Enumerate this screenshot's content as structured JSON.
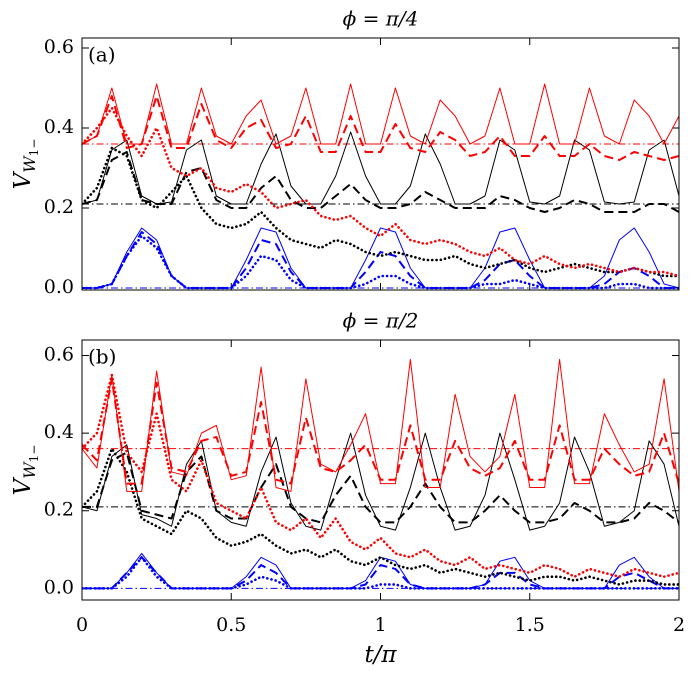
{
  "chart_data": [
    {
      "type": "line",
      "title": "ϕ = π/4",
      "panel_label": "(a)",
      "ylabel": [
        "V",
        "W",
        "1−"
      ],
      "xlim": [
        0,
        2
      ],
      "xticks": [
        0,
        0.5,
        1,
        1.5,
        2
      ],
      "show_xtick_labels": false,
      "ylim": [
        -0.005,
        0.625
      ],
      "yticks": [
        {
          "value": 0,
          "label": "0.0"
        },
        0.2,
        0.4,
        0.6
      ],
      "x": [
        0,
        0.05,
        0.1,
        0.15,
        0.2,
        0.25,
        0.3,
        0.35,
        0.4,
        0.45,
        0.5,
        0.55,
        0.6,
        0.65,
        0.7,
        0.75,
        0.8,
        0.85,
        0.9,
        0.95,
        1,
        1.05,
        1.1,
        1.15,
        1.2,
        1.25,
        1.3,
        1.35,
        1.4,
        1.45,
        1.5,
        1.55,
        1.6,
        1.65,
        1.7,
        1.75,
        1.8,
        1.85,
        1.9,
        1.95,
        2
      ],
      "reference_lines": [
        {
          "value": 0.36,
          "color": "#ff0000"
        },
        {
          "value": 0.21,
          "color": "#000000"
        },
        {
          "value": 0,
          "color": "#0000ff"
        }
      ],
      "series": [
        {
          "color": "#0000ff",
          "style": "solid",
          "values": [
            0,
            0,
            0.01,
            0.09,
            0.15,
            0.12,
            0.03,
            0,
            0,
            0,
            0,
            0.07,
            0.15,
            0.14,
            0.05,
            0,
            0,
            0,
            0,
            0.07,
            0.15,
            0.14,
            0.05,
            0,
            0,
            0,
            0,
            0.05,
            0.14,
            0.15,
            0.07,
            0,
            0,
            0,
            0,
            0.03,
            0.12,
            0.15,
            0.09,
            0.01,
            0
          ]
        },
        {
          "color": "#0000ff",
          "style": "dashed",
          "values": [
            0,
            0,
            0.01,
            0.08,
            0.14,
            0.11,
            0.03,
            0,
            0,
            0,
            0,
            0.05,
            0.12,
            0.11,
            0.04,
            0,
            0,
            0,
            0,
            0.04,
            0.09,
            0.08,
            0.03,
            0,
            0,
            0,
            0,
            0.02,
            0.06,
            0.07,
            0.03,
            0,
            0,
            0,
            0,
            0.01,
            0.04,
            0.05,
            0.03,
            0,
            0
          ]
        },
        {
          "color": "#0000ff",
          "style": "dotted",
          "values": [
            0,
            0,
            0.01,
            0.08,
            0.13,
            0.1,
            0.03,
            0,
            0,
            0,
            0,
            0.03,
            0.08,
            0.07,
            0.02,
            0,
            0,
            0,
            0,
            0.01,
            0.03,
            0.03,
            0.01,
            0,
            0,
            0,
            0,
            0.01,
            0.01,
            0.02,
            0.01,
            0,
            0,
            0,
            0,
            0,
            0.01,
            0.01,
            0,
            0,
            0
          ]
        },
        {
          "color": "#000000",
          "style": "solid",
          "values": [
            0.21,
            0.22,
            0.345,
            0.37,
            0.23,
            0.21,
            0.215,
            0.345,
            0.37,
            0.23,
            0.21,
            0.21,
            0.31,
            0.385,
            0.255,
            0.21,
            0.21,
            0.28,
            0.39,
            0.28,
            0.21,
            0.21,
            0.255,
            0.385,
            0.31,
            0.21,
            0.21,
            0.23,
            0.37,
            0.345,
            0.215,
            0.21,
            0.23,
            0.37,
            0.345,
            0.215,
            0.21,
            0.215,
            0.345,
            0.37,
            0.23
          ]
        },
        {
          "color": "#000000",
          "style": "dashed",
          "values": [
            0.21,
            0.22,
            0.32,
            0.34,
            0.22,
            0.21,
            0.21,
            0.29,
            0.3,
            0.22,
            0.2,
            0.2,
            0.25,
            0.28,
            0.22,
            0.2,
            0.2,
            0.23,
            0.26,
            0.22,
            0.2,
            0.2,
            0.21,
            0.24,
            0.22,
            0.2,
            0.2,
            0.2,
            0.23,
            0.22,
            0.2,
            0.19,
            0.2,
            0.22,
            0.21,
            0.19,
            0.19,
            0.19,
            0.21,
            0.21,
            0.19
          ]
        },
        {
          "color": "#000000",
          "style": "dotted",
          "values": [
            0.21,
            0.25,
            0.35,
            0.33,
            0.22,
            0.2,
            0.24,
            0.28,
            0.2,
            0.16,
            0.15,
            0.16,
            0.19,
            0.15,
            0.12,
            0.11,
            0.1,
            0.12,
            0.11,
            0.09,
            0.08,
            0.09,
            0.08,
            0.07,
            0.07,
            0.08,
            0.06,
            0.05,
            0.06,
            0.07,
            0.05,
            0.04,
            0.05,
            0.06,
            0.05,
            0.04,
            0.04,
            0.05,
            0.04,
            0.03,
            0.03
          ]
        },
        {
          "color": "#ff0000",
          "style": "solid",
          "values": [
            0.36,
            0.38,
            0.5,
            0.36,
            0.36,
            0.51,
            0.36,
            0.36,
            0.5,
            0.38,
            0.36,
            0.43,
            0.47,
            0.36,
            0.38,
            0.5,
            0.36,
            0.36,
            0.51,
            0.36,
            0.36,
            0.5,
            0.38,
            0.36,
            0.47,
            0.43,
            0.36,
            0.38,
            0.5,
            0.36,
            0.36,
            0.51,
            0.36,
            0.36,
            0.5,
            0.38,
            0.36,
            0.47,
            0.43,
            0.36,
            0.43
          ]
        },
        {
          "color": "#ff0000",
          "style": "dashed",
          "values": [
            0.36,
            0.38,
            0.48,
            0.35,
            0.36,
            0.48,
            0.35,
            0.35,
            0.46,
            0.37,
            0.35,
            0.4,
            0.42,
            0.35,
            0.36,
            0.43,
            0.34,
            0.34,
            0.43,
            0.34,
            0.34,
            0.41,
            0.35,
            0.34,
            0.39,
            0.37,
            0.33,
            0.34,
            0.38,
            0.33,
            0.33,
            0.38,
            0.33,
            0.33,
            0.36,
            0.33,
            0.32,
            0.34,
            0.33,
            0.32,
            0.33
          ]
        },
        {
          "color": "#ff0000",
          "style": "dotted",
          "values": [
            0.36,
            0.4,
            0.45,
            0.38,
            0.33,
            0.4,
            0.3,
            0.28,
            0.3,
            0.25,
            0.24,
            0.26,
            0.24,
            0.2,
            0.21,
            0.22,
            0.18,
            0.17,
            0.18,
            0.15,
            0.13,
            0.16,
            0.12,
            0.11,
            0.12,
            0.11,
            0.09,
            0.08,
            0.1,
            0.07,
            0.06,
            0.08,
            0.06,
            0.05,
            0.06,
            0.05,
            0.04,
            0.05,
            0.04,
            0.04,
            0.03
          ]
        }
      ]
    },
    {
      "type": "line",
      "title": "ϕ = π/2",
      "panel_label": "(b)",
      "ylabel": [
        "V",
        "W",
        "1−"
      ],
      "xlabel": "t/π",
      "xlim": [
        0,
        2
      ],
      "xticks": [
        0,
        0.5,
        1,
        1.5,
        2
      ],
      "show_xtick_labels": true,
      "ylim": [
        -0.03,
        0.64
      ],
      "yticks": [
        {
          "value": 0,
          "label": "0.0"
        },
        0.2,
        0.4,
        0.6
      ],
      "x": [
        0,
        0.05,
        0.1,
        0.15,
        0.2,
        0.25,
        0.3,
        0.35,
        0.4,
        0.45,
        0.5,
        0.55,
        0.6,
        0.65,
        0.7,
        0.75,
        0.8,
        0.85,
        0.9,
        0.95,
        1,
        1.05,
        1.1,
        1.15,
        1.2,
        1.25,
        1.3,
        1.35,
        1.4,
        1.45,
        1.5,
        1.55,
        1.6,
        1.65,
        1.7,
        1.75,
        1.8,
        1.85,
        1.9,
        1.95,
        2
      ],
      "reference_lines": [
        {
          "value": 0.36,
          "color": "#ff0000"
        },
        {
          "value": 0.21,
          "color": "#000000"
        },
        {
          "value": 0,
          "color": "#0000ff"
        }
      ],
      "series": [
        {
          "color": "#0000ff",
          "style": "solid",
          "values": [
            0,
            0,
            0,
            0.04,
            0.09,
            0.04,
            0,
            0,
            0,
            0,
            0,
            0.03,
            0.08,
            0.06,
            0,
            0,
            0,
            0,
            0,
            0.02,
            0.08,
            0.07,
            0.01,
            0,
            0,
            0,
            0,
            0.01,
            0.07,
            0.08,
            0.02,
            0,
            0,
            0,
            0,
            0,
            0.06,
            0.08,
            0.03,
            0,
            0
          ]
        },
        {
          "color": "#0000ff",
          "style": "dashed",
          "values": [
            0,
            0,
            0,
            0.04,
            0.08,
            0.04,
            0,
            0,
            0,
            0,
            0,
            0.02,
            0.06,
            0.04,
            0,
            0,
            0,
            0,
            0,
            0.01,
            0.06,
            0.05,
            0.01,
            0,
            0,
            0,
            0,
            0.01,
            0.04,
            0.04,
            0.01,
            0,
            0,
            0,
            0,
            0,
            0.03,
            0.04,
            0.02,
            0,
            0
          ]
        },
        {
          "color": "#0000ff",
          "style": "dotted",
          "values": [
            0,
            0,
            0,
            0.03,
            0.08,
            0.03,
            0,
            0,
            0,
            0,
            0,
            0.01,
            0.03,
            0.02,
            0,
            0,
            0,
            0,
            0,
            0,
            0.01,
            0.01,
            0,
            0,
            0,
            0,
            0,
            0,
            0,
            0,
            0,
            0,
            0,
            0,
            0,
            0,
            0,
            0,
            0,
            0,
            0
          ]
        },
        {
          "color": "#000000",
          "style": "solid",
          "values": [
            0.21,
            0.2,
            0.34,
            0.37,
            0.19,
            0.18,
            0.16,
            0.32,
            0.38,
            0.2,
            0.17,
            0.16,
            0.3,
            0.39,
            0.22,
            0.16,
            0.15,
            0.28,
            0.4,
            0.24,
            0.16,
            0.15,
            0.26,
            0.4,
            0.26,
            0.15,
            0.16,
            0.24,
            0.4,
            0.28,
            0.15,
            0.16,
            0.22,
            0.39,
            0.3,
            0.16,
            0.17,
            0.2,
            0.38,
            0.32,
            0.16
          ]
        },
        {
          "color": "#000000",
          "style": "dashed",
          "values": [
            0.21,
            0.21,
            0.33,
            0.35,
            0.2,
            0.19,
            0.18,
            0.3,
            0.34,
            0.2,
            0.18,
            0.18,
            0.26,
            0.32,
            0.21,
            0.18,
            0.17,
            0.24,
            0.29,
            0.21,
            0.17,
            0.17,
            0.21,
            0.27,
            0.21,
            0.17,
            0.17,
            0.2,
            0.24,
            0.2,
            0.17,
            0.17,
            0.18,
            0.22,
            0.2,
            0.17,
            0.17,
            0.18,
            0.22,
            0.2,
            0.17
          ]
        },
        {
          "color": "#000000",
          "style": "dotted",
          "values": [
            0.21,
            0.25,
            0.36,
            0.3,
            0.18,
            0.16,
            0.14,
            0.2,
            0.18,
            0.13,
            0.11,
            0.12,
            0.14,
            0.11,
            0.09,
            0.1,
            0.08,
            0.1,
            0.07,
            0.06,
            0.08,
            0.06,
            0.05,
            0.06,
            0.04,
            0.05,
            0.04,
            0.03,
            0.04,
            0.03,
            0.02,
            0.03,
            0.03,
            0.02,
            0.03,
            0.02,
            0.01,
            0.02,
            0.02,
            0.01,
            0.01
          ]
        },
        {
          "color": "#ff0000",
          "style": "solid",
          "values": [
            0.36,
            0.31,
            0.55,
            0.25,
            0.25,
            0.56,
            0.3,
            0.29,
            0.4,
            0.42,
            0.28,
            0.29,
            0.57,
            0.26,
            0.25,
            0.54,
            0.32,
            0.3,
            0.37,
            0.45,
            0.27,
            0.27,
            0.59,
            0.26,
            0.26,
            0.5,
            0.34,
            0.3,
            0.34,
            0.5,
            0.26,
            0.26,
            0.59,
            0.27,
            0.27,
            0.45,
            0.37,
            0.3,
            0.32,
            0.54,
            0.25
          ]
        },
        {
          "color": "#ff0000",
          "style": "dashed",
          "values": [
            0.37,
            0.33,
            0.54,
            0.27,
            0.27,
            0.53,
            0.31,
            0.3,
            0.38,
            0.39,
            0.29,
            0.3,
            0.48,
            0.28,
            0.27,
            0.44,
            0.31,
            0.3,
            0.33,
            0.37,
            0.28,
            0.28,
            0.42,
            0.28,
            0.28,
            0.38,
            0.31,
            0.29,
            0.31,
            0.38,
            0.28,
            0.28,
            0.42,
            0.28,
            0.28,
            0.36,
            0.32,
            0.29,
            0.3,
            0.4,
            0.27
          ]
        },
        {
          "color": "#ff0000",
          "style": "dotted",
          "values": [
            0.36,
            0.4,
            0.55,
            0.35,
            0.3,
            0.45,
            0.28,
            0.25,
            0.33,
            0.22,
            0.2,
            0.18,
            0.26,
            0.17,
            0.15,
            0.18,
            0.13,
            0.18,
            0.12,
            0.1,
            0.13,
            0.09,
            0.08,
            0.1,
            0.07,
            0.06,
            0.08,
            0.05,
            0.06,
            0.05,
            0.04,
            0.06,
            0.05,
            0.03,
            0.05,
            0.04,
            0.03,
            0.05,
            0.04,
            0.03,
            0.04
          ]
        }
      ]
    }
  ]
}
